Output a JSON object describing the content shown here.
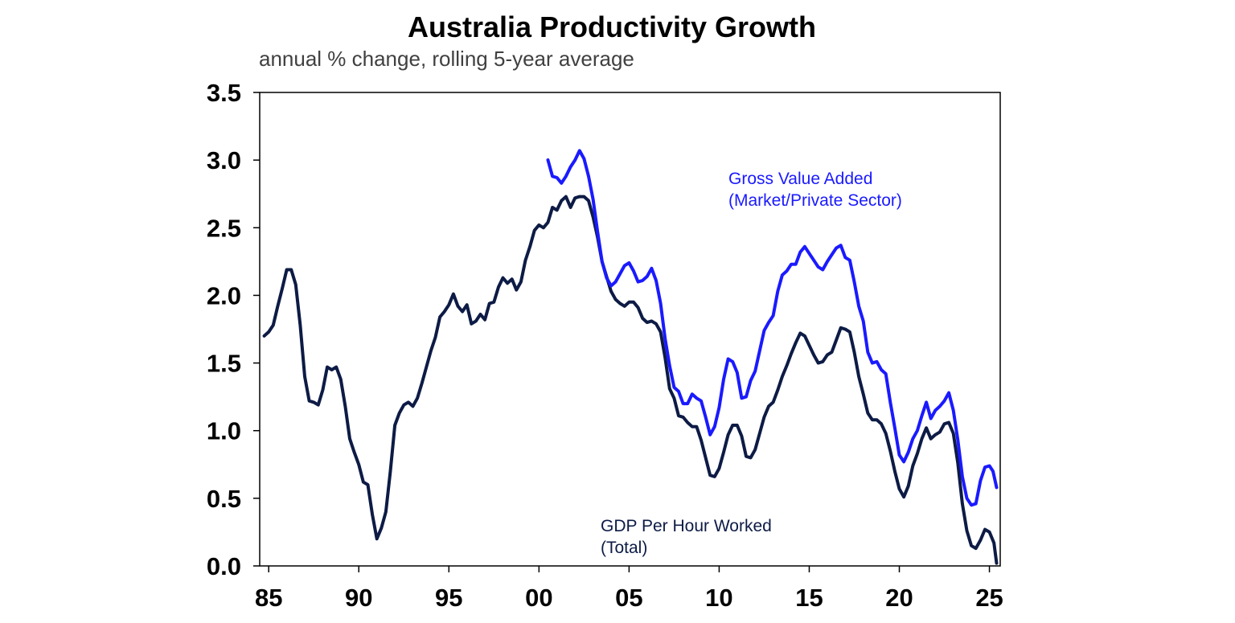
{
  "chart_data": {
    "type": "line",
    "title": "Australia Productivity Growth",
    "subtitle": "annual % change, rolling 5-year average",
    "xlabel": "",
    "ylabel": "",
    "xlim": [
      1984.5,
      2025.6
    ],
    "ylim": [
      0,
      3.5
    ],
    "grid": false,
    "y_ticks": [
      "0.0",
      "0.5",
      "1.0",
      "1.5",
      "2.0",
      "2.5",
      "3.0",
      "3.5"
    ],
    "y_tick_values": [
      0,
      0.5,
      1.0,
      1.5,
      2.0,
      2.5,
      3.0,
      3.5
    ],
    "x_ticks": [
      "85",
      "90",
      "95",
      "00",
      "05",
      "10",
      "15",
      "20",
      "25"
    ],
    "x_tick_values": [
      1985,
      1990,
      1995,
      2000,
      2005,
      2010,
      2015,
      2020,
      2025
    ],
    "series": [
      {
        "name": "GDP Per Hour Worked (Total)",
        "label_lines": [
          "GDP Per Hour Worked",
          "(Total)"
        ],
        "color": "#0d1b45",
        "points": [
          [
            1984.75,
            1.7
          ],
          [
            1985.0,
            1.73
          ],
          [
            1985.25,
            1.78
          ],
          [
            1985.5,
            1.92
          ],
          [
            1985.75,
            2.05
          ],
          [
            1986.0,
            2.19
          ],
          [
            1986.25,
            2.19
          ],
          [
            1986.5,
            2.08
          ],
          [
            1986.75,
            1.78
          ],
          [
            1987.0,
            1.4
          ],
          [
            1987.25,
            1.22
          ],
          [
            1987.5,
            1.21
          ],
          [
            1987.75,
            1.19
          ],
          [
            1988.0,
            1.3
          ],
          [
            1988.25,
            1.47
          ],
          [
            1988.5,
            1.45
          ],
          [
            1988.75,
            1.47
          ],
          [
            1989.0,
            1.38
          ],
          [
            1989.25,
            1.18
          ],
          [
            1989.5,
            0.94
          ],
          [
            1989.75,
            0.84
          ],
          [
            1990.0,
            0.75
          ],
          [
            1990.25,
            0.62
          ],
          [
            1990.5,
            0.6
          ],
          [
            1990.75,
            0.38
          ],
          [
            1991.0,
            0.2
          ],
          [
            1991.25,
            0.28
          ],
          [
            1991.5,
            0.4
          ],
          [
            1991.75,
            0.7
          ],
          [
            1992.0,
            1.04
          ],
          [
            1992.25,
            1.13
          ],
          [
            1992.5,
            1.19
          ],
          [
            1992.75,
            1.21
          ],
          [
            1993.0,
            1.18
          ],
          [
            1993.25,
            1.24
          ],
          [
            1993.5,
            1.35
          ],
          [
            1993.75,
            1.47
          ],
          [
            1994.0,
            1.59
          ],
          [
            1994.25,
            1.69
          ],
          [
            1994.5,
            1.84
          ],
          [
            1994.75,
            1.88
          ],
          [
            1995.0,
            1.93
          ],
          [
            1995.25,
            2.01
          ],
          [
            1995.5,
            1.92
          ],
          [
            1995.75,
            1.88
          ],
          [
            1996.0,
            1.93
          ],
          [
            1996.25,
            1.79
          ],
          [
            1996.5,
            1.81
          ],
          [
            1996.75,
            1.86
          ],
          [
            1997.0,
            1.82
          ],
          [
            1997.25,
            1.94
          ],
          [
            1997.5,
            1.95
          ],
          [
            1997.75,
            2.06
          ],
          [
            1998.0,
            2.13
          ],
          [
            1998.25,
            2.09
          ],
          [
            1998.5,
            2.12
          ],
          [
            1998.75,
            2.04
          ],
          [
            1999.0,
            2.1
          ],
          [
            1999.25,
            2.26
          ],
          [
            1999.5,
            2.36
          ],
          [
            1999.75,
            2.48
          ],
          [
            2000.0,
            2.52
          ],
          [
            2000.25,
            2.5
          ],
          [
            2000.5,
            2.54
          ],
          [
            2000.75,
            2.65
          ],
          [
            2001.0,
            2.63
          ],
          [
            2001.25,
            2.7
          ],
          [
            2001.5,
            2.73
          ],
          [
            2001.75,
            2.65
          ],
          [
            2002.0,
            2.72
          ],
          [
            2002.25,
            2.73
          ],
          [
            2002.5,
            2.73
          ],
          [
            2002.75,
            2.7
          ],
          [
            2003.0,
            2.58
          ],
          [
            2003.25,
            2.43
          ],
          [
            2003.5,
            2.25
          ],
          [
            2003.75,
            2.14
          ],
          [
            2004.0,
            2.03
          ],
          [
            2004.25,
            1.97
          ],
          [
            2004.5,
            1.94
          ],
          [
            2004.75,
            1.92
          ],
          [
            2005.0,
            1.95
          ],
          [
            2005.25,
            1.95
          ],
          [
            2005.5,
            1.91
          ],
          [
            2005.75,
            1.83
          ],
          [
            2006.0,
            1.8
          ],
          [
            2006.25,
            1.81
          ],
          [
            2006.5,
            1.79
          ],
          [
            2006.75,
            1.73
          ],
          [
            2007.0,
            1.54
          ],
          [
            2007.25,
            1.31
          ],
          [
            2007.5,
            1.24
          ],
          [
            2007.75,
            1.11
          ],
          [
            2008.0,
            1.1
          ],
          [
            2008.25,
            1.06
          ],
          [
            2008.5,
            1.03
          ],
          [
            2008.75,
            1.03
          ],
          [
            2009.0,
            0.93
          ],
          [
            2009.25,
            0.8
          ],
          [
            2009.5,
            0.67
          ],
          [
            2009.75,
            0.66
          ],
          [
            2010.0,
            0.72
          ],
          [
            2010.25,
            0.84
          ],
          [
            2010.5,
            0.97
          ],
          [
            2010.75,
            1.04
          ],
          [
            2011.0,
            1.04
          ],
          [
            2011.25,
            0.96
          ],
          [
            2011.5,
            0.81
          ],
          [
            2011.75,
            0.8
          ],
          [
            2012.0,
            0.86
          ],
          [
            2012.25,
            0.98
          ],
          [
            2012.5,
            1.1
          ],
          [
            2012.75,
            1.18
          ],
          [
            2013.0,
            1.21
          ],
          [
            2013.25,
            1.3
          ],
          [
            2013.5,
            1.4
          ],
          [
            2013.75,
            1.48
          ],
          [
            2014.0,
            1.57
          ],
          [
            2014.25,
            1.65
          ],
          [
            2014.5,
            1.72
          ],
          [
            2014.75,
            1.7
          ],
          [
            2015.0,
            1.63
          ],
          [
            2015.25,
            1.56
          ],
          [
            2015.5,
            1.5
          ],
          [
            2015.75,
            1.51
          ],
          [
            2016.0,
            1.56
          ],
          [
            2016.25,
            1.58
          ],
          [
            2016.5,
            1.67
          ],
          [
            2016.75,
            1.76
          ],
          [
            2017.0,
            1.75
          ],
          [
            2017.25,
            1.73
          ],
          [
            2017.5,
            1.58
          ],
          [
            2017.75,
            1.4
          ],
          [
            2018.0,
            1.27
          ],
          [
            2018.25,
            1.13
          ],
          [
            2018.5,
            1.08
          ],
          [
            2018.75,
            1.08
          ],
          [
            2019.0,
            1.05
          ],
          [
            2019.25,
            0.98
          ],
          [
            2019.5,
            0.85
          ],
          [
            2019.75,
            0.7
          ],
          [
            2020.0,
            0.57
          ],
          [
            2020.25,
            0.51
          ],
          [
            2020.5,
            0.59
          ],
          [
            2020.75,
            0.74
          ],
          [
            2021.0,
            0.83
          ],
          [
            2021.25,
            0.94
          ],
          [
            2021.5,
            1.02
          ],
          [
            2021.75,
            0.94
          ],
          [
            2022.0,
            0.97
          ],
          [
            2022.25,
            0.99
          ],
          [
            2022.5,
            1.05
          ],
          [
            2022.75,
            1.06
          ],
          [
            2023.0,
            0.98
          ],
          [
            2023.25,
            0.76
          ],
          [
            2023.5,
            0.46
          ],
          [
            2023.75,
            0.26
          ],
          [
            2024.0,
            0.15
          ],
          [
            2024.25,
            0.13
          ],
          [
            2024.5,
            0.19
          ],
          [
            2024.75,
            0.27
          ],
          [
            2025.0,
            0.25
          ],
          [
            2025.25,
            0.17
          ],
          [
            2025.4,
            0.02
          ]
        ]
      },
      {
        "name": "Gross Value Added (Market/Private Sector)",
        "label_lines": [
          "Gross Value Added",
          "(Market/Private Sector)"
        ],
        "color": "#1a1aff",
        "points": [
          [
            2000.5,
            3.0
          ],
          [
            2000.75,
            2.88
          ],
          [
            2001.0,
            2.87
          ],
          [
            2001.25,
            2.83
          ],
          [
            2001.5,
            2.88
          ],
          [
            2001.75,
            2.95
          ],
          [
            2002.0,
            3.0
          ],
          [
            2002.25,
            3.07
          ],
          [
            2002.5,
            3.01
          ],
          [
            2002.75,
            2.88
          ],
          [
            2003.0,
            2.71
          ],
          [
            2003.25,
            2.47
          ],
          [
            2003.5,
            2.25
          ],
          [
            2003.75,
            2.13
          ],
          [
            2004.0,
            2.07
          ],
          [
            2004.25,
            2.1
          ],
          [
            2004.5,
            2.16
          ],
          [
            2004.75,
            2.22
          ],
          [
            2005.0,
            2.24
          ],
          [
            2005.25,
            2.18
          ],
          [
            2005.5,
            2.1
          ],
          [
            2005.75,
            2.11
          ],
          [
            2006.0,
            2.14
          ],
          [
            2006.25,
            2.2
          ],
          [
            2006.5,
            2.11
          ],
          [
            2006.75,
            1.94
          ],
          [
            2007.0,
            1.68
          ],
          [
            2007.25,
            1.48
          ],
          [
            2007.5,
            1.32
          ],
          [
            2007.75,
            1.29
          ],
          [
            2008.0,
            1.2
          ],
          [
            2008.25,
            1.2
          ],
          [
            2008.5,
            1.27
          ],
          [
            2008.75,
            1.24
          ],
          [
            2009.0,
            1.22
          ],
          [
            2009.25,
            1.1
          ],
          [
            2009.5,
            0.97
          ],
          [
            2009.75,
            1.03
          ],
          [
            2010.0,
            1.17
          ],
          [
            2010.25,
            1.38
          ],
          [
            2010.5,
            1.53
          ],
          [
            2010.75,
            1.51
          ],
          [
            2011.0,
            1.43
          ],
          [
            2011.25,
            1.24
          ],
          [
            2011.5,
            1.25
          ],
          [
            2011.75,
            1.37
          ],
          [
            2012.0,
            1.44
          ],
          [
            2012.25,
            1.59
          ],
          [
            2012.5,
            1.74
          ],
          [
            2012.75,
            1.8
          ],
          [
            2013.0,
            1.85
          ],
          [
            2013.25,
            2.03
          ],
          [
            2013.5,
            2.15
          ],
          [
            2013.75,
            2.18
          ],
          [
            2014.0,
            2.23
          ],
          [
            2014.25,
            2.23
          ],
          [
            2014.5,
            2.32
          ],
          [
            2014.75,
            2.36
          ],
          [
            2015.0,
            2.31
          ],
          [
            2015.25,
            2.26
          ],
          [
            2015.5,
            2.21
          ],
          [
            2015.75,
            2.19
          ],
          [
            2016.0,
            2.25
          ],
          [
            2016.25,
            2.3
          ],
          [
            2016.5,
            2.35
          ],
          [
            2016.75,
            2.37
          ],
          [
            2017.0,
            2.28
          ],
          [
            2017.25,
            2.26
          ],
          [
            2017.5,
            2.1
          ],
          [
            2017.75,
            1.92
          ],
          [
            2018.0,
            1.81
          ],
          [
            2018.25,
            1.58
          ],
          [
            2018.5,
            1.5
          ],
          [
            2018.75,
            1.51
          ],
          [
            2019.0,
            1.45
          ],
          [
            2019.25,
            1.42
          ],
          [
            2019.5,
            1.21
          ],
          [
            2019.75,
            1.02
          ],
          [
            2020.0,
            0.82
          ],
          [
            2020.25,
            0.77
          ],
          [
            2020.5,
            0.84
          ],
          [
            2020.75,
            0.94
          ],
          [
            2021.0,
            1.0
          ],
          [
            2021.25,
            1.11
          ],
          [
            2021.5,
            1.21
          ],
          [
            2021.75,
            1.09
          ],
          [
            2022.0,
            1.15
          ],
          [
            2022.25,
            1.18
          ],
          [
            2022.5,
            1.22
          ],
          [
            2022.75,
            1.28
          ],
          [
            2023.0,
            1.15
          ],
          [
            2023.25,
            0.93
          ],
          [
            2023.5,
            0.66
          ],
          [
            2023.75,
            0.5
          ],
          [
            2024.0,
            0.45
          ],
          [
            2024.25,
            0.46
          ],
          [
            2024.5,
            0.63
          ],
          [
            2024.75,
            0.73
          ],
          [
            2025.0,
            0.74
          ],
          [
            2025.2,
            0.7
          ],
          [
            2025.4,
            0.58
          ]
        ]
      }
    ]
  }
}
